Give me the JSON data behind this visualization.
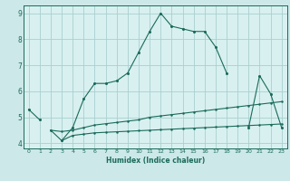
{
  "xlabel": "Humidex (Indice chaleur)",
  "x_values": [
    0,
    1,
    2,
    3,
    4,
    5,
    6,
    7,
    8,
    9,
    10,
    11,
    12,
    13,
    14,
    15,
    16,
    17,
    18,
    19,
    20,
    21,
    22,
    23
  ],
  "line1": [
    5.3,
    4.9,
    null,
    4.1,
    4.6,
    5.7,
    6.3,
    6.3,
    6.4,
    6.7,
    7.5,
    8.3,
    9.0,
    8.5,
    8.4,
    8.3,
    8.3,
    7.7,
    6.7,
    null,
    4.6,
    6.6,
    5.9,
    4.6
  ],
  "line2": [
    null,
    null,
    4.5,
    4.45,
    4.5,
    4.6,
    4.7,
    4.75,
    4.8,
    4.85,
    4.9,
    5.0,
    5.05,
    5.1,
    5.15,
    5.2,
    5.25,
    5.3,
    5.35,
    5.4,
    5.45,
    5.5,
    5.55,
    5.6
  ],
  "line3": [
    null,
    null,
    4.5,
    4.1,
    4.3,
    4.35,
    4.4,
    4.42,
    4.44,
    4.46,
    4.48,
    4.5,
    4.52,
    4.54,
    4.56,
    4.58,
    4.6,
    4.62,
    4.64,
    4.66,
    4.68,
    4.7,
    4.72,
    4.74
  ],
  "ylim": [
    3.8,
    9.3
  ],
  "xlim": [
    -0.5,
    23.5
  ],
  "yticks": [
    4,
    5,
    6,
    7,
    8,
    9
  ],
  "xticks": [
    0,
    1,
    2,
    3,
    4,
    5,
    6,
    7,
    8,
    9,
    10,
    11,
    12,
    13,
    14,
    15,
    16,
    17,
    18,
    19,
    20,
    21,
    22,
    23
  ],
  "line_color": "#1a6b5a",
  "bg_color": "#cce8e8",
  "grid_color": "#aacfcf",
  "plot_bg": "#d8f0f0"
}
